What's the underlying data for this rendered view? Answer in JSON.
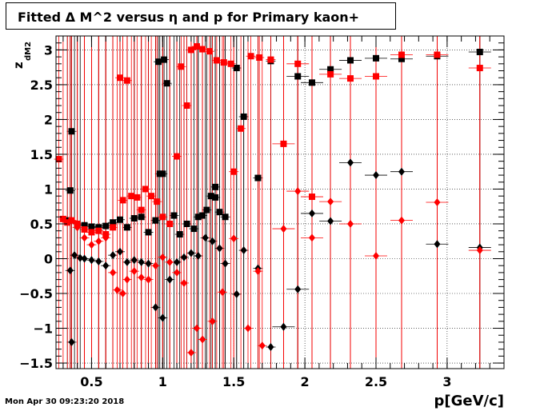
{
  "title": "Fitted Δ M^2 versus η and p for Primary kaon+",
  "timestamp": "Mon Apr 30 09:23:20 2018",
  "chart_data": {
    "type": "scatter",
    "xlabel": "p[GeV/c]",
    "ylabel": "z",
    "ylabel_sub": "dM2",
    "xlim": [
      0.25,
      3.4
    ],
    "ylim": [
      -1.58,
      3.2
    ],
    "x_ticks": [
      0.5,
      1,
      1.5,
      2,
      2.5,
      3
    ],
    "x_tick_labels": [
      "0.5",
      "1",
      "1.5",
      "2",
      "2.5",
      "3"
    ],
    "y_ticks": [
      -1.5,
      -1,
      -0.5,
      0,
      0.5,
      1,
      1.5,
      2,
      2.5,
      3
    ],
    "y_tick_labels": [
      "−1.5",
      "−1",
      "−0.5",
      "0",
      "0.5",
      "1",
      "1.5",
      "2",
      "2.5",
      "3"
    ],
    "grid": true,
    "colors": {
      "black": "#000000",
      "red": "#ff0000"
    },
    "series": [
      {
        "color": "#000000",
        "marker": "square",
        "points": [
          [
            0.36,
            1.83
          ],
          [
            0.35,
            0.98
          ],
          [
            0.33,
            0.55
          ],
          [
            0.4,
            0.5
          ],
          [
            0.45,
            0.48
          ],
          [
            0.5,
            0.46
          ],
          [
            0.55,
            0.45
          ],
          [
            0.6,
            0.47
          ],
          [
            0.65,
            0.52
          ],
          [
            0.7,
            0.56
          ],
          [
            0.75,
            0.45
          ],
          [
            0.8,
            0.58
          ],
          [
            0.85,
            0.6
          ],
          [
            0.9,
            0.38
          ],
          [
            0.95,
            0.55
          ],
          [
            0.97,
            2.83
          ],
          [
            0.98,
            1.22
          ],
          [
            1.0,
            1.22
          ],
          [
            1.01,
            2.86
          ],
          [
            1.03,
            2.52
          ],
          [
            1.08,
            0.62
          ],
          [
            1.12,
            0.35
          ],
          [
            1.17,
            0.5
          ],
          [
            1.22,
            0.43
          ],
          [
            1.25,
            0.6
          ],
          [
            1.28,
            0.62
          ],
          [
            1.31,
            0.7
          ],
          [
            1.34,
            0.9
          ],
          [
            1.37,
            1.03
          ],
          [
            1.37,
            0.88
          ],
          [
            1.4,
            0.67
          ],
          [
            1.44,
            0.6
          ],
          [
            1.52,
            2.74
          ],
          [
            1.57,
            2.04
          ],
          [
            1.67,
            1.16
          ],
          [
            1.76,
            2.84
          ],
          [
            1.95,
            2.62
          ],
          [
            2.05,
            2.53
          ],
          [
            2.18,
            2.72
          ],
          [
            2.32,
            2.85
          ],
          [
            2.5,
            2.88
          ],
          [
            2.68,
            2.87
          ],
          [
            2.93,
            2.91
          ],
          [
            3.23,
            2.97
          ]
        ]
      },
      {
        "color": "#000000",
        "marker": "diamond",
        "points": [
          [
            0.36,
            -1.2
          ],
          [
            0.35,
            -0.17
          ],
          [
            0.38,
            0.05
          ],
          [
            0.42,
            0.01
          ],
          [
            0.45,
            0.0
          ],
          [
            0.5,
            -0.02
          ],
          [
            0.55,
            -0.04
          ],
          [
            0.6,
            -0.1
          ],
          [
            0.65,
            0.05
          ],
          [
            0.7,
            0.1
          ],
          [
            0.75,
            -0.05
          ],
          [
            0.8,
            -0.02
          ],
          [
            0.85,
            -0.05
          ],
          [
            0.9,
            -0.07
          ],
          [
            0.95,
            -0.7
          ],
          [
            1.0,
            -0.85
          ],
          [
            1.05,
            -0.3
          ],
          [
            1.1,
            -0.05
          ],
          [
            1.15,
            0.02
          ],
          [
            1.2,
            0.08
          ],
          [
            1.25,
            0.04
          ],
          [
            1.3,
            0.3
          ],
          [
            1.35,
            0.25
          ],
          [
            1.4,
            0.15
          ],
          [
            1.44,
            -0.07
          ],
          [
            1.52,
            -0.51
          ],
          [
            1.57,
            0.12
          ],
          [
            1.67,
            -0.14
          ],
          [
            1.76,
            -1.27
          ],
          [
            1.85,
            -0.98
          ],
          [
            1.95,
            -0.44
          ],
          [
            2.05,
            0.65
          ],
          [
            2.18,
            0.54
          ],
          [
            2.32,
            1.38
          ],
          [
            2.5,
            1.2
          ],
          [
            2.68,
            1.25
          ],
          [
            2.93,
            0.21
          ],
          [
            3.23,
            0.16
          ]
        ]
      },
      {
        "color": "#ff0000",
        "marker": "square",
        "points": [
          [
            0.27,
            1.43
          ],
          [
            0.3,
            0.57
          ],
          [
            0.33,
            0.52
          ],
          [
            0.36,
            0.55
          ],
          [
            0.4,
            0.5
          ],
          [
            0.45,
            0.42
          ],
          [
            0.5,
            0.38
          ],
          [
            0.55,
            0.4
          ],
          [
            0.6,
            0.35
          ],
          [
            0.65,
            0.45
          ],
          [
            0.7,
            2.6
          ],
          [
            0.75,
            2.56
          ],
          [
            0.72,
            0.84
          ],
          [
            0.78,
            0.9
          ],
          [
            0.82,
            0.88
          ],
          [
            0.85,
            0.7
          ],
          [
            0.88,
            1.0
          ],
          [
            0.92,
            0.9
          ],
          [
            0.96,
            0.82
          ],
          [
            1.0,
            0.6
          ],
          [
            1.05,
            0.5
          ],
          [
            1.1,
            1.47
          ],
          [
            1.13,
            2.76
          ],
          [
            1.17,
            2.2
          ],
          [
            1.2,
            3.0
          ],
          [
            1.24,
            3.05
          ],
          [
            1.28,
            3.01
          ],
          [
            1.33,
            2.98
          ],
          [
            1.38,
            2.85
          ],
          [
            1.43,
            2.82
          ],
          [
            1.48,
            2.8
          ],
          [
            1.5,
            1.25
          ],
          [
            1.55,
            1.87
          ],
          [
            1.62,
            2.91
          ],
          [
            1.68,
            2.89
          ],
          [
            1.76,
            2.86
          ],
          [
            1.85,
            1.65
          ],
          [
            1.95,
            2.8
          ],
          [
            2.05,
            0.89
          ],
          [
            2.18,
            2.65
          ],
          [
            2.32,
            2.59
          ],
          [
            2.5,
            2.62
          ],
          [
            2.68,
            2.93
          ],
          [
            2.93,
            2.93
          ],
          [
            3.23,
            2.74
          ]
        ]
      },
      {
        "color": "#ff0000",
        "marker": "diamond",
        "points": [
          [
            0.35,
            0.55
          ],
          [
            0.4,
            0.45
          ],
          [
            0.45,
            0.3
          ],
          [
            0.5,
            0.2
          ],
          [
            0.55,
            0.25
          ],
          [
            0.6,
            0.3
          ],
          [
            0.65,
            -0.2
          ],
          [
            0.68,
            -0.45
          ],
          [
            0.72,
            -0.5
          ],
          [
            0.75,
            -0.3
          ],
          [
            0.8,
            -0.18
          ],
          [
            0.85,
            -0.27
          ],
          [
            0.9,
            -0.3
          ],
          [
            0.95,
            -0.1
          ],
          [
            1.0,
            0.02
          ],
          [
            1.05,
            -0.05
          ],
          [
            1.1,
            -0.2
          ],
          [
            1.15,
            -0.35
          ],
          [
            1.2,
            -1.35
          ],
          [
            1.24,
            -1.0
          ],
          [
            1.28,
            -1.16
          ],
          [
            1.35,
            -0.9
          ],
          [
            1.42,
            -0.48
          ],
          [
            1.5,
            0.29
          ],
          [
            1.6,
            -1.0
          ],
          [
            1.67,
            -0.18
          ],
          [
            1.7,
            -1.25
          ],
          [
            1.85,
            0.43
          ],
          [
            1.95,
            0.97
          ],
          [
            2.05,
            0.3
          ],
          [
            2.18,
            0.82
          ],
          [
            2.32,
            0.5
          ],
          [
            2.5,
            0.04
          ],
          [
            2.68,
            0.55
          ],
          [
            2.93,
            0.81
          ],
          [
            3.23,
            0.12
          ]
        ]
      }
    ]
  }
}
